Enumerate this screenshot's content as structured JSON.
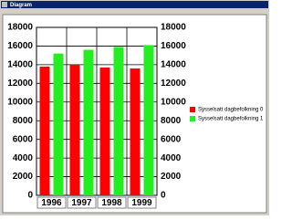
{
  "window": {
    "title": "Diagram"
  },
  "chart_data": {
    "type": "bar",
    "categories": [
      "1996",
      "1997",
      "1998",
      "1999"
    ],
    "series": [
      {
        "name": "Sysselsatt dagbefolkning 0",
        "color": "#ff0000",
        "values": [
          13800,
          14000,
          13700,
          13600
        ]
      },
      {
        "name": "Sysselsatt dagbefolkning 1",
        "color": "#22ee22",
        "values": [
          15200,
          15600,
          15900,
          16100
        ]
      }
    ],
    "ylim": [
      0,
      18000
    ],
    "yticks": [
      0,
      2000,
      4000,
      6000,
      8000,
      10000,
      12000,
      14000,
      16000,
      18000
    ],
    "y2lim": [
      0,
      18000
    ],
    "y2ticks": [
      0,
      2000,
      4000,
      6000,
      8000,
      10000,
      12000,
      14000,
      16000,
      18000
    ],
    "grid": true,
    "legend": "right"
  }
}
